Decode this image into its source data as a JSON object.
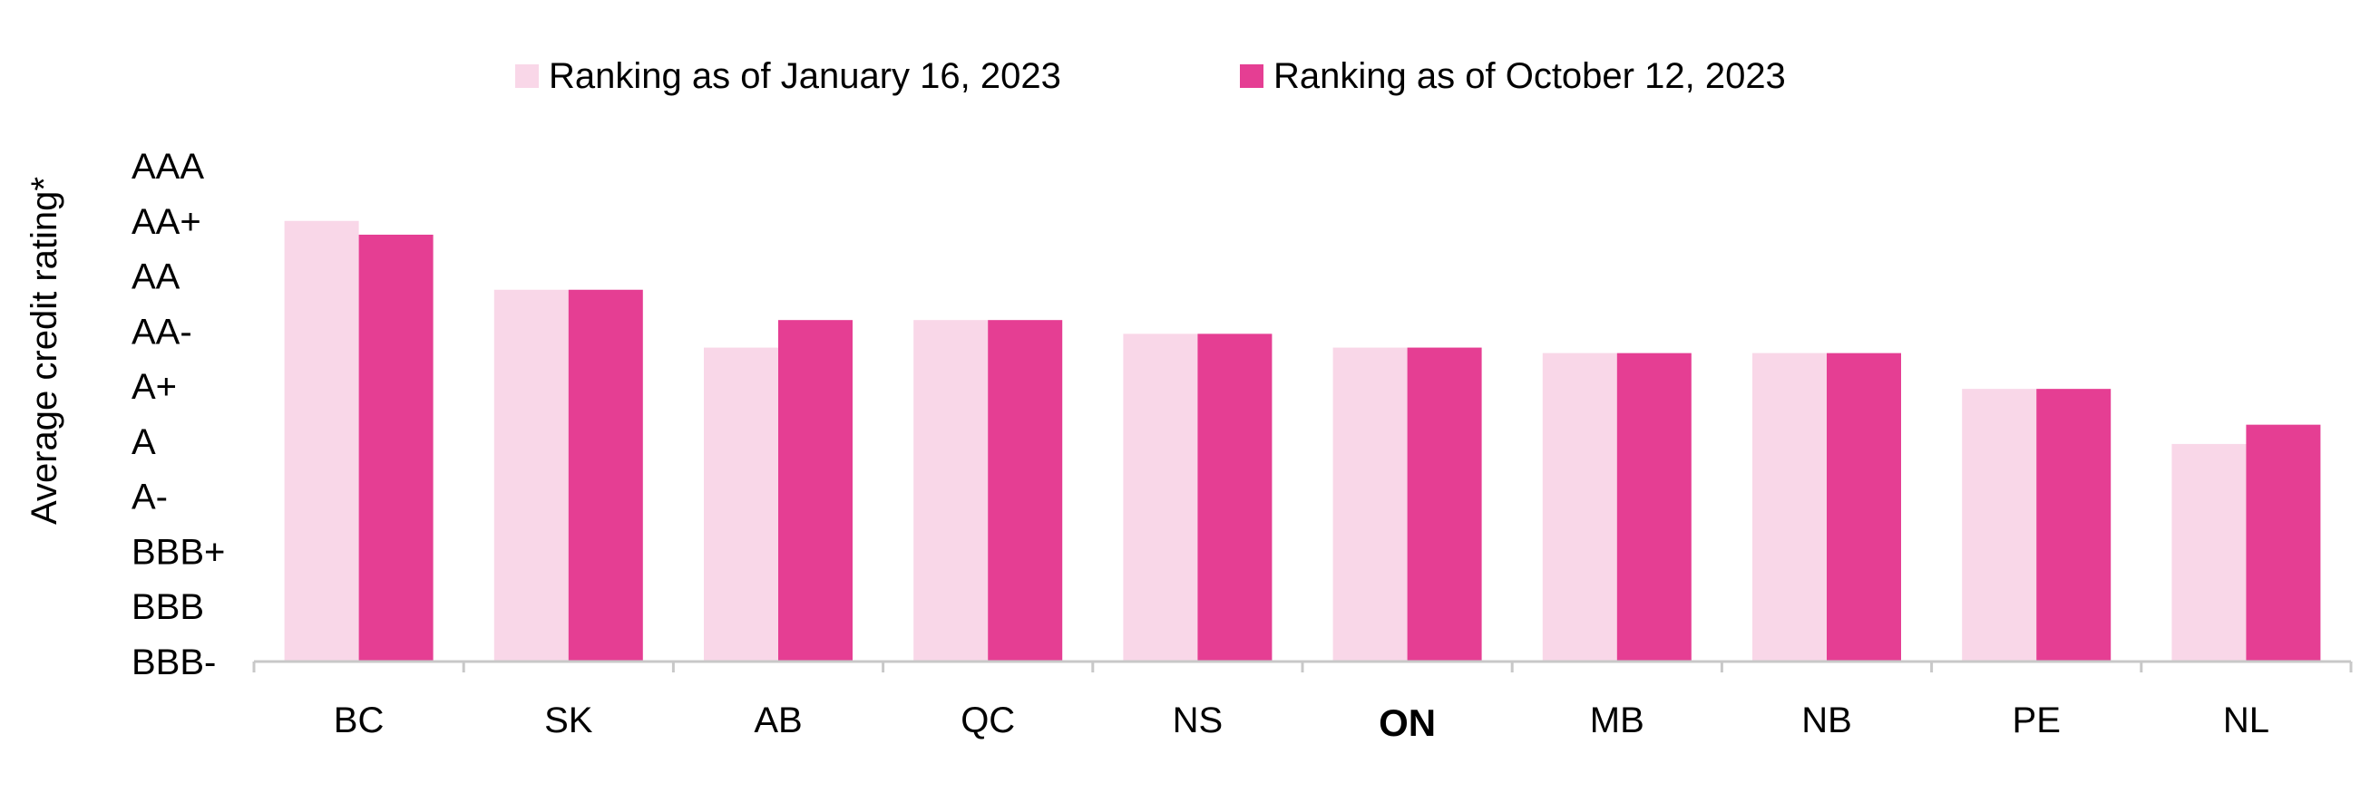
{
  "chart_data": {
    "type": "bar",
    "title": "",
    "xlabel": "",
    "ylabel": "Average credit rating*",
    "categories": [
      "BC",
      "SK",
      "AB",
      "QC",
      "NS",
      "ON",
      "MB",
      "NB",
      "PE",
      "NL"
    ],
    "highlighted_category": "ON",
    "y_tick_labels": [
      "BBB-",
      "BBB",
      "BBB+",
      "A-",
      "A",
      "A+",
      "AA-",
      "AA",
      "AA+",
      "AAA"
    ],
    "y_scale_note": "numeric scale: BBB- = 0, BBB = 1, BBB+ = 2, A- = 3, A = 4, A+ = 5, AA- = 6, AA = 7, AA+ = 8, AAA = 9",
    "ylim": [
      0,
      9
    ],
    "grid": false,
    "legend_position": "top-center",
    "series": [
      {
        "name": "Ranking as of January 16, 2023",
        "color": "#f9d7e8",
        "values": [
          8.0,
          6.75,
          5.7,
          6.2,
          5.95,
          5.7,
          5.6,
          5.6,
          4.95,
          3.95
        ]
      },
      {
        "name": "Ranking as of October 12, 2023",
        "color": "#e53e93",
        "values": [
          7.75,
          6.75,
          6.2,
          6.2,
          5.95,
          5.7,
          5.6,
          5.6,
          4.95,
          4.3
        ]
      }
    ],
    "axis_color": "#c8c8c8"
  }
}
